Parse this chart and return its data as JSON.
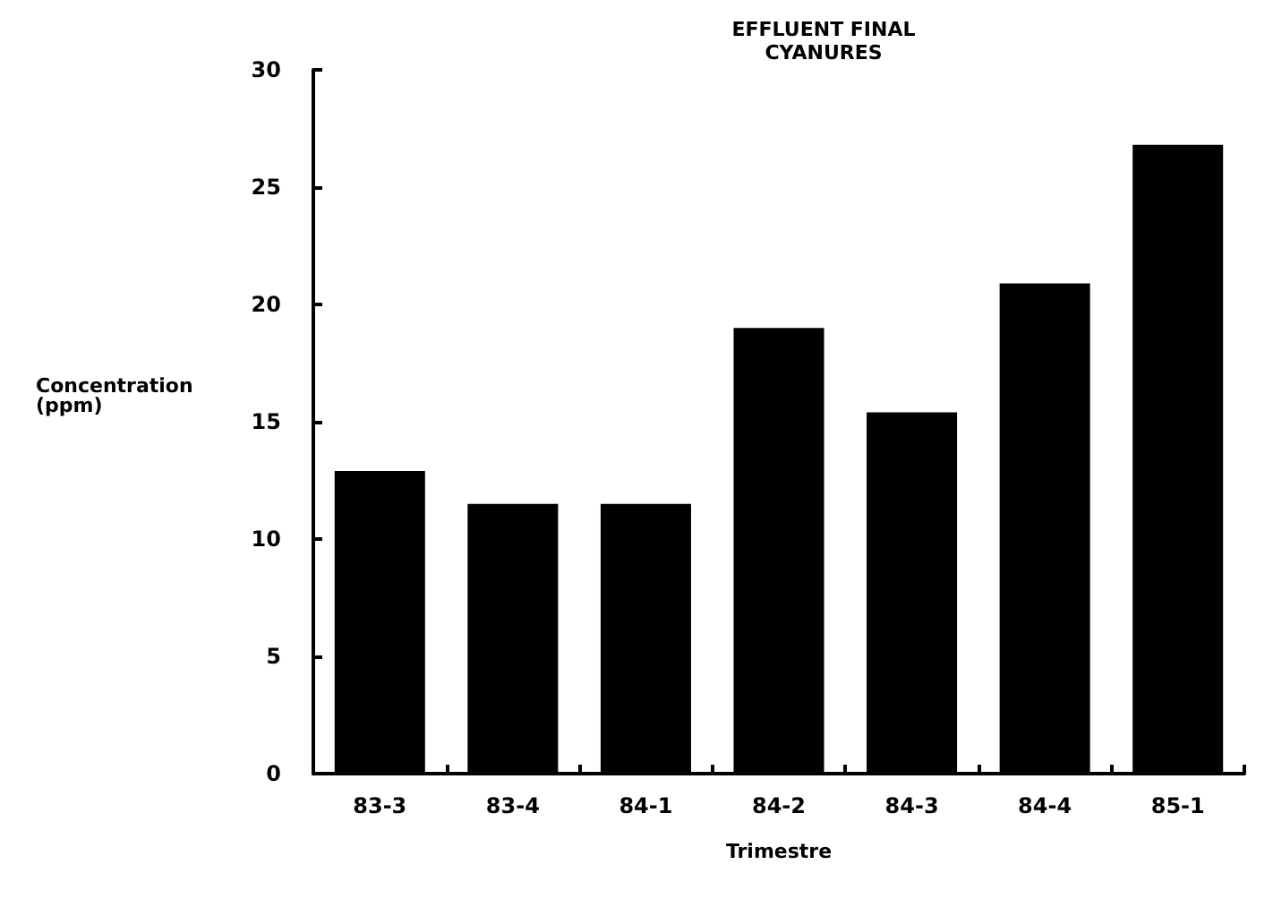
{
  "chart_data": {
    "type": "bar",
    "title": "EFFLUENT FINAL",
    "subtitle": "CYANURES",
    "xlabel": "Trimestre",
    "ylabel": "Concentration\n(ppm)",
    "categories": [
      "83-3",
      "83-4",
      "84-1",
      "84-2",
      "84-3",
      "84-4",
      "85-1"
    ],
    "values": [
      12.9,
      11.5,
      11.5,
      19.0,
      15.4,
      20.9,
      26.8
    ],
    "color": "#000000",
    "ylim": [
      0,
      30
    ],
    "yticks": [
      0,
      5,
      10,
      15,
      20,
      25,
      30
    ],
    "grid": false
  }
}
